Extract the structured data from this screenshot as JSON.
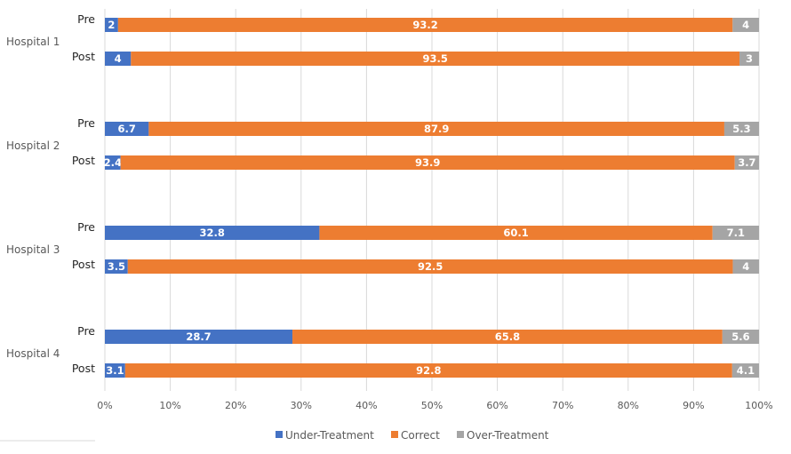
{
  "chart_data": {
    "type": "bar",
    "orientation": "horizontal",
    "stacked": "percent",
    "title": "",
    "xlabel": "",
    "ylabel": "",
    "xlim": [
      0,
      100
    ],
    "x_ticks": [
      "0%",
      "10%",
      "20%",
      "30%",
      "40%",
      "50%",
      "60%",
      "70%",
      "80%",
      "90%",
      "100%"
    ],
    "grid": "vertical",
    "groups": [
      {
        "name": "Hospital 1",
        "bars": [
          {
            "label": "Pre",
            "values": [
              2,
              93.2,
              4
            ],
            "labels": [
              "2",
              "93.2",
              "4"
            ]
          },
          {
            "label": "Post",
            "values": [
              4,
              93.5,
              3
            ],
            "labels": [
              "4",
              "93.5",
              "3"
            ]
          }
        ]
      },
      {
        "name": "Hospital 2",
        "bars": [
          {
            "label": "Pre",
            "values": [
              6.7,
              87.9,
              5.3
            ],
            "labels": [
              "6.7",
              "87.9",
              "5.3"
            ]
          },
          {
            "label": "Post",
            "values": [
              2.4,
              93.9,
              3.7
            ],
            "labels": [
              "2.4",
              "93.9",
              "3.7"
            ]
          }
        ]
      },
      {
        "name": "Hospital 3",
        "bars": [
          {
            "label": "Pre",
            "values": [
              32.8,
              60.1,
              7.1
            ],
            "labels": [
              "32.8",
              "60.1",
              "7.1"
            ]
          },
          {
            "label": "Post",
            "values": [
              3.5,
              92.5,
              4
            ],
            "labels": [
              "3.5",
              "92.5",
              "4"
            ]
          }
        ]
      },
      {
        "name": "Hospital 4",
        "bars": [
          {
            "label": "Pre",
            "values": [
              28.7,
              65.8,
              5.6
            ],
            "labels": [
              "28.7",
              "65.8",
              "5.6"
            ]
          },
          {
            "label": "Post",
            "values": [
              3.1,
              92.8,
              4.1
            ],
            "labels": [
              "3.1",
              "92.8",
              "4.1"
            ]
          }
        ]
      }
    ],
    "series": [
      {
        "name": "Under-Treatment",
        "color": "#4472c4"
      },
      {
        "name": "Correct",
        "color": "#ed7d31"
      },
      {
        "name": "Over-Treatment",
        "color": "#a5a5a5"
      }
    ],
    "legend": "bottom"
  }
}
